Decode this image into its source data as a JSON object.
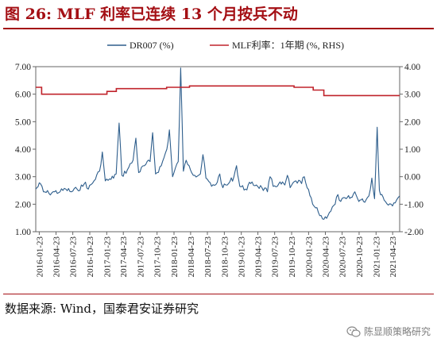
{
  "header": {
    "title": "图 26:  MLF 利率已连续 13 个月按兵不动"
  },
  "footer": {
    "source": "数据来源:  Wind，国泰君安证券研究",
    "watermark": "陈显顺策略研究"
  },
  "colors": {
    "title": "#a40f14",
    "dr007": "#2e5e8c",
    "mlf": "#c0232b",
    "axis": "#555555"
  },
  "icons": {
    "watermark": "wechat-icon"
  },
  "chart_data": {
    "type": "line",
    "title": "",
    "xlabel": "",
    "ylabel_left": "",
    "ylabel_right": "",
    "legend_position": "top",
    "grid": false,
    "y_left": {
      "lim": [
        1.0,
        7.0
      ],
      "ticks": [
        "1.00",
        "2.00",
        "3.00",
        "4.00",
        "5.00",
        "6.00",
        "7.00"
      ]
    },
    "y_right": {
      "lim": [
        -2.0,
        4.0
      ],
      "ticks": [
        "-2.00",
        "-1.00",
        "0.00",
        "1.00",
        "2.00",
        "3.00",
        "4.00"
      ]
    },
    "x": {
      "start": "2016-01-04",
      "end": "2021-05-31",
      "ticks": [
        "2016-01-23",
        "2016-04-23",
        "2016-07-23",
        "2016-10-23",
        "2017-01-23",
        "2017-04-23",
        "2017-07-23",
        "2017-10-23",
        "2018-01-23",
        "2018-04-23",
        "2018-07-23",
        "2018-10-23",
        "2019-01-23",
        "2019-04-23",
        "2019-07-23",
        "2019-10-23",
        "2020-01-23",
        "2020-04-23",
        "2020-07-23",
        "2020-10-23",
        "2021-01-23",
        "2021-04-23"
      ]
    },
    "series": [
      {
        "name": "DR007 (%)",
        "axis": "left",
        "color": "#2e5e8c",
        "x": [
          "2016-01-04",
          "2016-01-29",
          "2016-02-15",
          "2016-03-15",
          "2016-04-15",
          "2016-05-15",
          "2016-06-15",
          "2016-07-15",
          "2016-08-15",
          "2016-09-15",
          "2016-09-30",
          "2016-10-15",
          "2016-11-15",
          "2016-12-15",
          "2016-12-30",
          "2017-01-15",
          "2017-02-15",
          "2017-03-15",
          "2017-03-31",
          "2017-04-15",
          "2017-05-15",
          "2017-06-15",
          "2017-06-30",
          "2017-07-15",
          "2017-08-15",
          "2017-09-15",
          "2017-09-29",
          "2017-10-15",
          "2017-11-15",
          "2017-12-15",
          "2017-12-29",
          "2018-01-15",
          "2018-02-15",
          "2018-02-28",
          "2018-03-15",
          "2018-03-30",
          "2018-04-15",
          "2018-05-15",
          "2018-06-15",
          "2018-06-29",
          "2018-07-15",
          "2018-08-15",
          "2018-09-15",
          "2018-09-28",
          "2018-10-15",
          "2018-11-15",
          "2018-12-14",
          "2018-12-28",
          "2019-01-15",
          "2019-02-15",
          "2019-03-15",
          "2019-04-15",
          "2019-05-15",
          "2019-06-14",
          "2019-06-28",
          "2019-07-15",
          "2019-08-15",
          "2019-09-16",
          "2019-09-30",
          "2019-10-15",
          "2019-11-15",
          "2019-12-16",
          "2019-12-31",
          "2020-01-15",
          "2020-02-14",
          "2020-03-16",
          "2020-04-15",
          "2020-05-15",
          "2020-06-15",
          "2020-06-30",
          "2020-07-15",
          "2020-08-14",
          "2020-09-15",
          "2020-09-30",
          "2020-10-15",
          "2020-11-16",
          "2020-12-15",
          "2020-12-31",
          "2021-01-15",
          "2021-01-29",
          "2021-02-10",
          "2021-03-15",
          "2021-04-15",
          "2021-05-14",
          "2021-05-31"
        ],
        "values": [
          2.55,
          2.75,
          2.45,
          2.4,
          2.45,
          2.45,
          2.55,
          2.45,
          2.55,
          2.65,
          2.8,
          2.55,
          2.85,
          3.2,
          3.9,
          2.85,
          2.9,
          3.1,
          4.95,
          3.05,
          3.25,
          3.6,
          4.4,
          3.15,
          3.4,
          3.55,
          4.6,
          3.1,
          3.4,
          4.0,
          4.7,
          3.0,
          3.55,
          6.95,
          3.2,
          3.6,
          3.4,
          3.05,
          3.1,
          3.8,
          2.95,
          2.65,
          2.8,
          3.1,
          2.6,
          2.75,
          3.0,
          3.4,
          2.65,
          2.55,
          2.75,
          2.7,
          2.6,
          2.45,
          3.0,
          2.65,
          2.75,
          2.7,
          3.05,
          2.6,
          2.85,
          2.75,
          3.0,
          2.6,
          2.0,
          1.7,
          1.45,
          1.7,
          2.0,
          2.35,
          2.1,
          2.2,
          2.25,
          2.45,
          2.2,
          2.1,
          2.3,
          2.95,
          2.2,
          4.8,
          2.5,
          2.1,
          2.0,
          2.15,
          2.3
        ]
      },
      {
        "name": "MLF利率：1年期 (%, RHS)",
        "axis": "right",
        "color": "#c0232b",
        "x": [
          "2016-01-04",
          "2016-02-05",
          "2016-02-05",
          "2017-01-24",
          "2017-01-24",
          "2017-03-16",
          "2017-03-16",
          "2017-12-14",
          "2017-12-14",
          "2018-04-17",
          "2018-04-17",
          "2019-11-05",
          "2019-11-05",
          "2020-02-17",
          "2020-02-17",
          "2020-04-15",
          "2020-04-15",
          "2021-05-31"
        ],
        "values": [
          3.25,
          3.25,
          3.0,
          3.0,
          3.1,
          3.1,
          3.2,
          3.2,
          3.25,
          3.25,
          3.3,
          3.3,
          3.25,
          3.25,
          3.15,
          3.15,
          2.95,
          2.95
        ]
      }
    ]
  }
}
